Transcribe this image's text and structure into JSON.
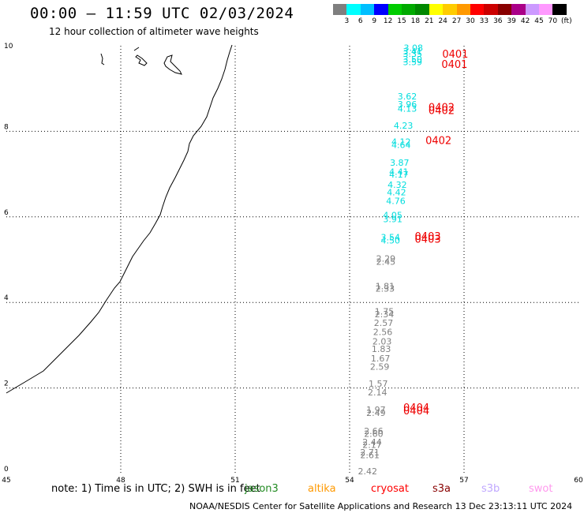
{
  "header": {
    "title": "00:00 – 11:59 UTC 02/03/2024",
    "subtitle": "12 hour collection of altimeter wave heights"
  },
  "colorbar": {
    "colors": [
      "#7f7f7f",
      "#00ffff",
      "#00bfff",
      "#0000ff",
      "#00cc00",
      "#00aa00",
      "#008800",
      "#ffff00",
      "#ffcc00",
      "#ff9900",
      "#ff0000",
      "#cc0000",
      "#880000",
      "#aa0088",
      "#cc99ff",
      "#ff99ff",
      "#000000"
    ],
    "labels": [
      "3",
      "6",
      "9",
      "12",
      "15",
      "18",
      "21",
      "24",
      "27",
      "30",
      "33",
      "36",
      "39",
      "42",
      "45",
      "70",
      "(ft)"
    ]
  },
  "map": {
    "lon_ticks": [
      "45",
      "48",
      "51",
      "54",
      "57",
      "60"
    ],
    "lat_ticks": [
      "0",
      "2",
      "4",
      "6",
      "8",
      "10"
    ],
    "lon_range": [
      45,
      60
    ],
    "lat_range": [
      0,
      10
    ],
    "obs_gray": [
      {
        "v": "2.29",
        "lon": 54.95,
        "lat": 4.95
      },
      {
        "v": "2.45",
        "lon": 54.95,
        "lat": 4.88
      },
      {
        "v": "1.81",
        "lon": 54.93,
        "lat": 4.31
      },
      {
        "v": "2.33",
        "lon": 54.93,
        "lat": 4.25
      },
      {
        "v": "1.75",
        "lon": 54.91,
        "lat": 3.72
      },
      {
        "v": "2.34",
        "lon": 54.91,
        "lat": 3.65
      },
      {
        "v": "2.57",
        "lon": 54.89,
        "lat": 3.45
      },
      {
        "v": "2.56",
        "lon": 54.87,
        "lat": 3.24
      },
      {
        "v": "2.03",
        "lon": 54.85,
        "lat": 3.02
      },
      {
        "v": "1.83",
        "lon": 54.83,
        "lat": 2.84
      },
      {
        "v": "1.67",
        "lon": 54.81,
        "lat": 2.62
      },
      {
        "v": "2.59",
        "lon": 54.79,
        "lat": 2.43
      },
      {
        "v": "1.57",
        "lon": 54.75,
        "lat": 2.03
      },
      {
        "v": "2.14",
        "lon": 54.73,
        "lat": 1.83
      },
      {
        "v": "1.97",
        "lon": 54.69,
        "lat": 1.42
      },
      {
        "v": "2.49",
        "lon": 54.69,
        "lat": 1.35
      },
      {
        "v": "2.66",
        "lon": 54.63,
        "lat": 0.92
      },
      {
        "v": "2.60",
        "lon": 54.63,
        "lat": 0.86
      },
      {
        "v": "2.44",
        "lon": 54.59,
        "lat": 0.66
      },
      {
        "v": "2.17",
        "lon": 54.59,
        "lat": 0.6
      },
      {
        "v": "2.71",
        "lon": 54.53,
        "lat": 0.42
      },
      {
        "v": "2.61",
        "lon": 54.53,
        "lat": 0.36
      },
      {
        "v": "2.42",
        "lon": 54.47,
        "lat": -0.02
      }
    ],
    "obs_cyan": [
      {
        "v": "3.08",
        "lon": 55.67,
        "lat": 9.88
      },
      {
        "v": "3.41",
        "lon": 55.65,
        "lat": 9.8
      },
      {
        "v": "3.35",
        "lon": 55.65,
        "lat": 9.74
      },
      {
        "v": "3.50",
        "lon": 55.65,
        "lat": 9.61
      },
      {
        "v": "3.59",
        "lon": 55.65,
        "lat": 9.55
      },
      {
        "v": "3.62",
        "lon": 55.51,
        "lat": 8.75
      },
      {
        "v": "3.96",
        "lon": 55.51,
        "lat": 8.56
      },
      {
        "v": "4.13",
        "lon": 55.51,
        "lat": 8.46
      },
      {
        "v": "4.23",
        "lon": 55.41,
        "lat": 8.06
      },
      {
        "v": "4.12",
        "lon": 55.35,
        "lat": 7.68
      },
      {
        "v": "4.64",
        "lon": 55.35,
        "lat": 7.61
      },
      {
        "v": "3.87",
        "lon": 55.31,
        "lat": 7.2
      },
      {
        "v": "4.41",
        "lon": 55.29,
        "lat": 6.98
      },
      {
        "v": "4.17",
        "lon": 55.29,
        "lat": 6.92
      },
      {
        "v": "4.32",
        "lon": 55.25,
        "lat": 6.68
      },
      {
        "v": "4.42",
        "lon": 55.23,
        "lat": 6.5
      },
      {
        "v": "4.76",
        "lon": 55.21,
        "lat": 6.3
      },
      {
        "v": "4.05",
        "lon": 55.13,
        "lat": 5.97
      },
      {
        "v": "3.91",
        "lon": 55.13,
        "lat": 5.88
      },
      {
        "v": "3.54",
        "lon": 55.07,
        "lat": 5.45
      },
      {
        "v": "4.50",
        "lon": 55.07,
        "lat": 5.38
      }
    ],
    "obs_red": [
      {
        "v": "0401",
        "lon": 56.77,
        "lat": 9.72
      },
      {
        "v": "0401",
        "lon": 56.75,
        "lat": 9.48
      },
      {
        "v": "0402",
        "lon": 56.41,
        "lat": 8.48
      },
      {
        "v": "0402",
        "lon": 56.41,
        "lat": 8.4
      },
      {
        "v": "0402",
        "lon": 56.33,
        "lat": 7.7
      },
      {
        "v": "0403",
        "lon": 56.05,
        "lat": 5.46
      },
      {
        "v": "0403",
        "lon": 56.05,
        "lat": 5.4
      },
      {
        "v": "0404",
        "lon": 55.75,
        "lat": 1.46
      },
      {
        "v": "0404",
        "lon": 55.75,
        "lat": 1.38
      }
    ]
  },
  "footer": {
    "note": "note:  1) Time is in UTC;  2) SWH is in feet",
    "legend": [
      {
        "name": "jason3",
        "color": "#228B22"
      },
      {
        "name": "altika",
        "color": "#ff9900"
      },
      {
        "name": "cryosat",
        "color": "#ff0000"
      },
      {
        "name": "s3a",
        "color": "#880000"
      },
      {
        "name": "s3b",
        "color": "#c0a8ff"
      },
      {
        "name": "swot",
        "color": "#ff99ee"
      }
    ],
    "credit": "NOAA/NESDIS Center for Satellite Applications and Research     13 Dec 23:13:11 UTC 2024"
  }
}
